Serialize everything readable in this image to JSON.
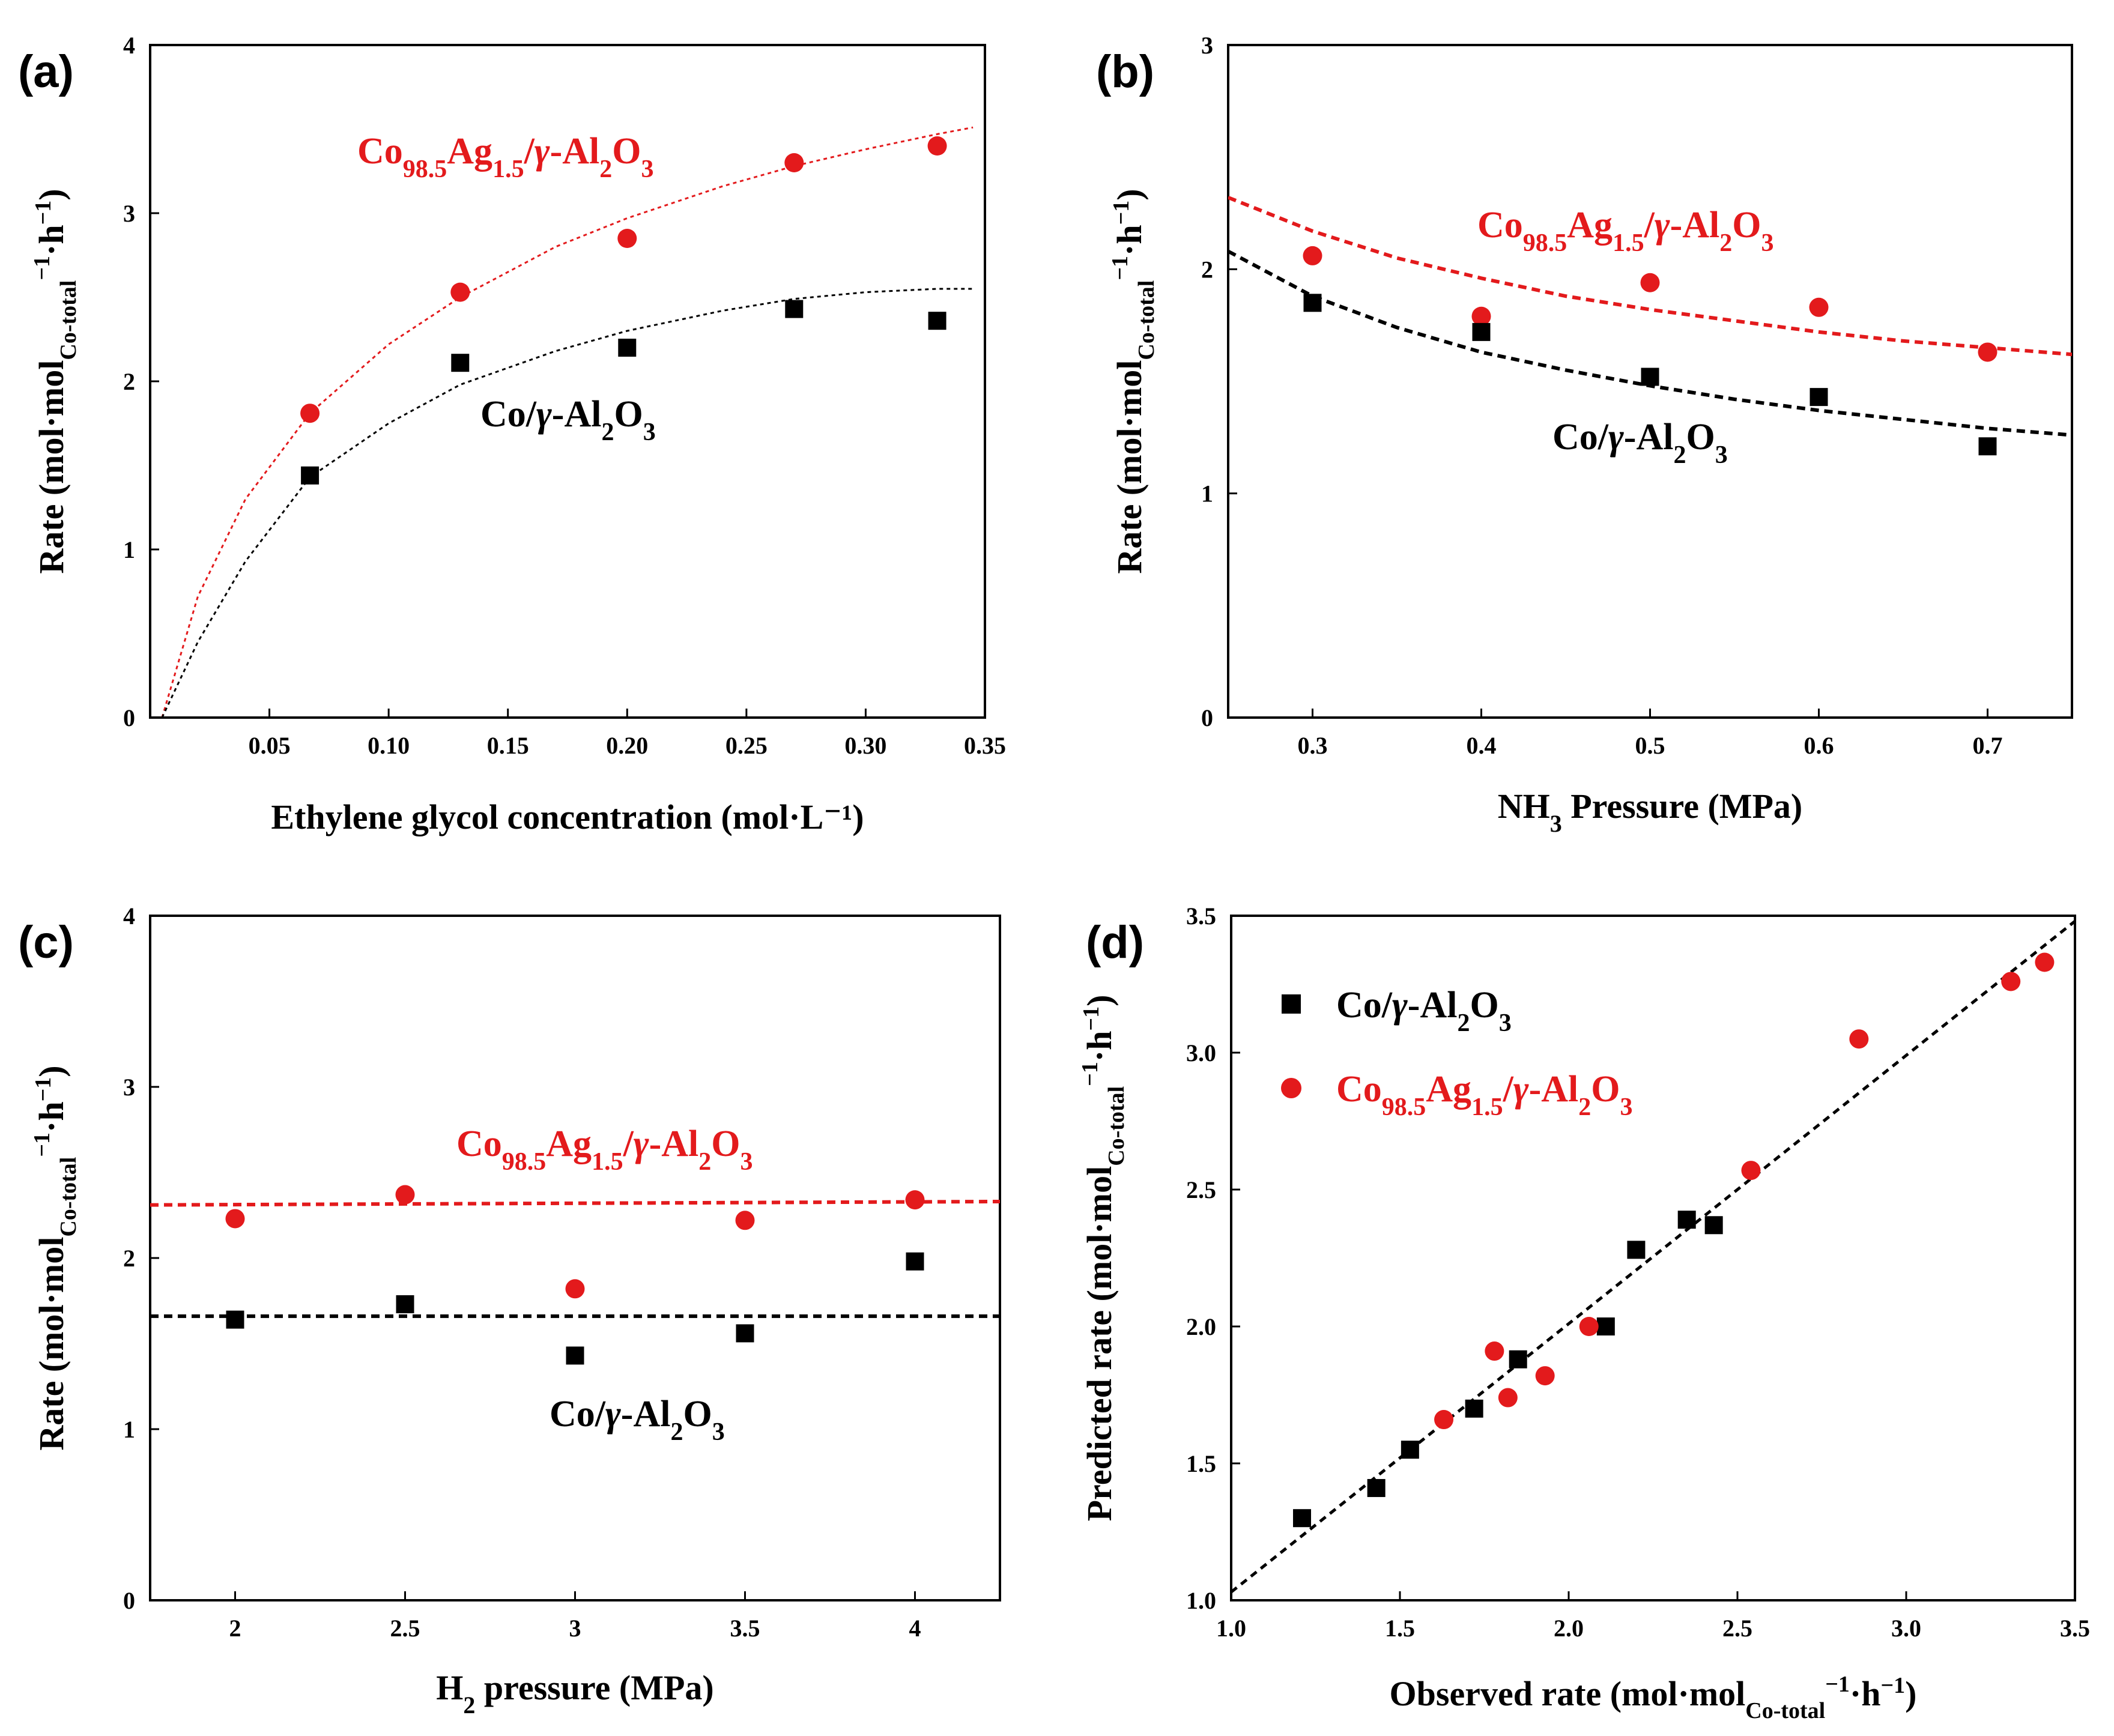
{
  "colors": {
    "red": "#e31a1c",
    "black": "#000000"
  },
  "chart_data": [
    {
      "panel": "(a)",
      "type": "scatter",
      "xlabel": "Ethylene glycol concentration (mol·L⁻¹)",
      "xlim": [
        0,
        0.35
      ],
      "ylim": [
        0,
        4
      ],
      "xticks": [
        "0.05",
        "0.10",
        "0.15",
        "0.20",
        "0.25",
        "0.30",
        "0.35"
      ],
      "yticks": [
        "0",
        "1",
        "2",
        "3",
        "4"
      ],
      "ylabel": {
        "pre": "Rate (mol·mol",
        "sub": "Co-total",
        "sup": "−1",
        "post": "·h",
        "sup2": "−1",
        "end": ")"
      },
      "series": [
        {
          "name": "Co98.5Ag1.5/γ-Al2O3",
          "color": "#e31a1c",
          "marker": "circle",
          "x": [
            0.067,
            0.13,
            0.2,
            0.27,
            0.33
          ],
          "y": [
            1.81,
            2.53,
            2.85,
            3.3,
            3.4
          ],
          "fit": {
            "x": [
              0.005,
              0.02,
              0.04,
              0.067,
              0.1,
              0.13,
              0.17,
              0.2,
              0.24,
              0.27,
              0.3,
              0.33,
              0.345
            ],
            "y": [
              0,
              0.72,
              1.3,
              1.81,
              2.22,
              2.5,
              2.8,
              2.97,
              3.16,
              3.28,
              3.38,
              3.47,
              3.51
            ]
          },
          "label": {
            "base": "Co",
            "sub1": "98.5",
            "mid": "Ag",
            "sub2": "1.5",
            "tail": "/",
            "greek": "γ",
            "tail2": "-Al",
            "sub3": "2",
            "tail3": "O",
            "sub4": "3"
          }
        },
        {
          "name": "Co/γ-Al2O3",
          "color": "#000000",
          "marker": "square",
          "x": [
            0.067,
            0.13,
            0.2,
            0.27,
            0.33
          ],
          "y": [
            1.44,
            2.11,
            2.2,
            2.43,
            2.36
          ],
          "fit": {
            "x": [
              0.005,
              0.02,
              0.04,
              0.067,
              0.1,
              0.13,
              0.17,
              0.2,
              0.24,
              0.27,
              0.3,
              0.33,
              0.345
            ],
            "y": [
              0,
              0.45,
              0.93,
              1.43,
              1.75,
              1.98,
              2.18,
              2.3,
              2.42,
              2.49,
              2.53,
              2.55,
              2.55
            ]
          },
          "label": {
            "base": "Co/",
            "greek": "γ",
            "tail2": "-Al",
            "sub3": "2",
            "tail3": "O",
            "sub4": "3"
          }
        }
      ]
    },
    {
      "panel": "(b)",
      "type": "scatter",
      "xlabel": {
        "pre": "NH",
        "sub": "3",
        "post": " Pressure (MPa)"
      },
      "xlim": [
        0.25,
        0.75
      ],
      "ylim": [
        0,
        3
      ],
      "xticks": [
        "0.3",
        "0.4",
        "0.5",
        "0.6",
        "0.7"
      ],
      "yticks": [
        "0",
        "1",
        "2",
        "3"
      ],
      "ylabel": {
        "pre": "Rate (mol·mol",
        "sub": "Co-total",
        "sup": "−1",
        "post": "·h",
        "sup2": "−1",
        "end": ")"
      },
      "series": [
        {
          "name": "Co98.5Ag1.5/γ-Al2O3",
          "color": "#e31a1c",
          "marker": "circle",
          "x": [
            0.3,
            0.4,
            0.5,
            0.6,
            0.7
          ],
          "y": [
            2.06,
            1.79,
            1.94,
            1.83,
            1.63
          ],
          "fit": {
            "x": [
              0.25,
              0.3,
              0.35,
              0.4,
              0.45,
              0.5,
              0.55,
              0.6,
              0.65,
              0.7,
              0.75
            ],
            "y": [
              2.32,
              2.17,
              2.05,
              1.96,
              1.88,
              1.82,
              1.77,
              1.72,
              1.68,
              1.65,
              1.62
            ]
          },
          "label": {
            "base": "Co",
            "sub1": "98.5",
            "mid": "Ag",
            "sub2": "1.5",
            "tail": "/",
            "greek": "γ",
            "tail2": "-Al",
            "sub3": "2",
            "tail3": "O",
            "sub4": "3"
          }
        },
        {
          "name": "Co/γ-Al2O3",
          "color": "#000000",
          "marker": "square",
          "x": [
            0.3,
            0.4,
            0.5,
            0.6,
            0.7
          ],
          "y": [
            1.85,
            1.72,
            1.52,
            1.43,
            1.21
          ],
          "fit": {
            "x": [
              0.25,
              0.3,
              0.35,
              0.4,
              0.45,
              0.5,
              0.55,
              0.6,
              0.65,
              0.7,
              0.75
            ],
            "y": [
              2.08,
              1.88,
              1.74,
              1.63,
              1.55,
              1.48,
              1.42,
              1.37,
              1.33,
              1.29,
              1.26
            ]
          },
          "label": {
            "base": "Co/",
            "greek": "γ",
            "tail2": "-Al",
            "sub3": "2",
            "tail3": "O",
            "sub4": "3"
          }
        }
      ]
    },
    {
      "panel": "(c)",
      "type": "scatter",
      "xlabel": {
        "pre": "H",
        "sub": "2",
        "post": " pressure (MPa)"
      },
      "xlim": [
        1.75,
        4.25
      ],
      "ylim": [
        0,
        4
      ],
      "xticks": [
        "2",
        "2.5",
        "3",
        "3.5",
        "4"
      ],
      "yticks": [
        "0",
        "1",
        "2",
        "3",
        "4"
      ],
      "ylabel": {
        "pre": "Rate (mol·mol",
        "sub": "Co-total",
        "sup": "−1",
        "post": "·h",
        "sup2": "−1",
        "end": ")"
      },
      "series": [
        {
          "name": "Co98.5Ag1.5/γ-Al2O3",
          "color": "#e31a1c",
          "marker": "circle",
          "x": [
            2,
            2.5,
            3,
            3.5,
            4
          ],
          "y": [
            2.23,
            2.37,
            1.82,
            2.22,
            2.34
          ],
          "fit": {
            "x": [
              1.75,
              4.25
            ],
            "y": [
              2.31,
              2.33
            ]
          },
          "label": {
            "base": "Co",
            "sub1": "98.5",
            "mid": "Ag",
            "sub2": "1.5",
            "tail": "/",
            "greek": "γ",
            "tail2": "-Al",
            "sub3": "2",
            "tail3": "O",
            "sub4": "3"
          }
        },
        {
          "name": "Co/γ-Al2O3",
          "color": "#000000",
          "marker": "square",
          "x": [
            2,
            2.5,
            3,
            3.5,
            4
          ],
          "y": [
            1.64,
            1.73,
            1.43,
            1.56,
            1.98
          ],
          "fit": {
            "x": [
              1.75,
              4.25
            ],
            "y": [
              1.66,
              1.66
            ]
          },
          "label": {
            "base": "Co/",
            "greek": "γ",
            "tail2": "-Al",
            "sub3": "2",
            "tail3": "O",
            "sub4": "3"
          }
        }
      ]
    },
    {
      "panel": "(d)",
      "type": "scatter",
      "xlabel": {
        "pre": "Observed rate (mol·mol",
        "sub": "Co-total",
        "sup": "−1",
        "post": "·h",
        "sup2": "−1",
        "end": ")"
      },
      "xlim": [
        1.0,
        3.5
      ],
      "ylim": [
        1.0,
        3.5
      ],
      "xticks": [
        "1.0",
        "1.5",
        "2.0",
        "2.5",
        "3.0",
        "3.5"
      ],
      "yticks": [
        "1.0",
        "1.5",
        "2.0",
        "2.5",
        "3.0",
        "3.5"
      ],
      "ylabel": {
        "pre": "Predicted rate (mol·mol",
        "sub": "Co-total",
        "sup": "−1",
        "post": "·h",
        "sup2": "−1",
        "end": ")"
      },
      "legend_position": "top-left",
      "series": [
        {
          "name": "Co/γ-Al2O3",
          "color": "#000000",
          "marker": "square",
          "x": [
            1.21,
            1.43,
            1.53,
            1.72,
            1.85,
            2.11,
            2.2,
            2.35,
            2.43
          ],
          "y": [
            1.3,
            1.41,
            1.55,
            1.7,
            1.88,
            2.0,
            2.28,
            2.39,
            2.37
          ],
          "label": {
            "base": "Co/",
            "greek": "γ",
            "tail2": "-Al",
            "sub3": "2",
            "tail3": "O",
            "sub4": "3"
          }
        },
        {
          "name": "Co98.5Ag1.5/γ-Al2O3",
          "color": "#e31a1c",
          "marker": "circle",
          "x": [
            1.63,
            1.78,
            1.82,
            1.93,
            2.06,
            2.54,
            2.86,
            3.31,
            3.41
          ],
          "y": [
            1.66,
            1.91,
            1.74,
            1.82,
            2.0,
            2.57,
            3.05,
            3.26,
            3.33
          ],
          "label": {
            "base": "Co",
            "sub1": "98.5",
            "mid": "Ag",
            "sub2": "1.5",
            "tail": "/",
            "greek": "γ",
            "tail2": "-Al",
            "sub3": "2",
            "tail3": "O",
            "sub4": "3"
          }
        }
      ],
      "fit": {
        "x": [
          1.0,
          3.5
        ],
        "y": [
          1.03,
          3.48
        ]
      }
    }
  ]
}
